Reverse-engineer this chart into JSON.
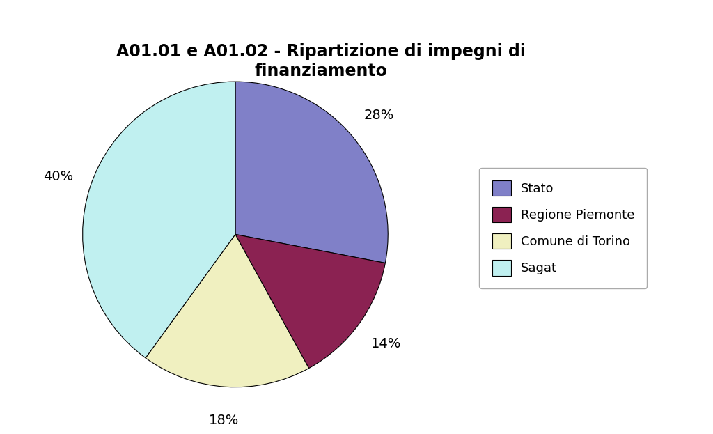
{
  "title": "A01.01 e A01.02 - Ripartizione di impegni di\nfinanziamento",
  "labels": [
    "Stato",
    "Regione Piemonte",
    "Comune di Torino",
    "Sagat"
  ],
  "values": [
    28,
    14,
    18,
    40
  ],
  "colors": [
    "#8080C8",
    "#8B2252",
    "#F0F0C0",
    "#C0F0F0"
  ],
  "pct_labels": [
    "28%",
    "14%",
    "18%",
    "40%"
  ],
  "background_color": "#ffffff",
  "title_fontsize": 17,
  "label_fontsize": 14,
  "legend_fontsize": 13
}
